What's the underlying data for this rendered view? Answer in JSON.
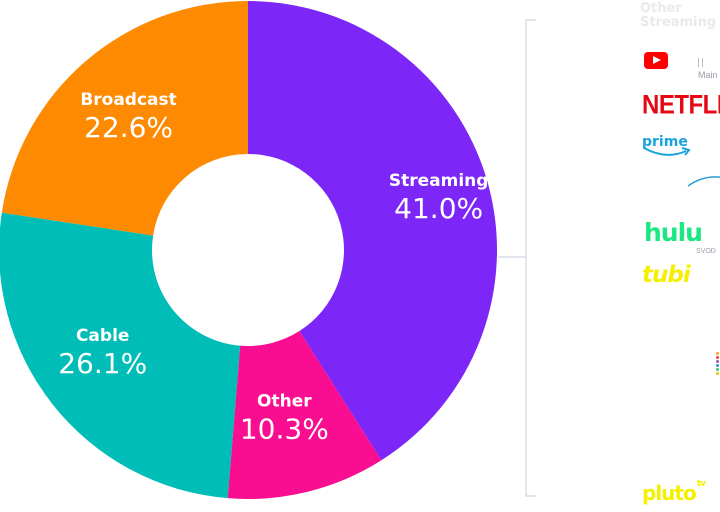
{
  "chart_data": {
    "type": "pie",
    "donut": true,
    "categories": [
      "Streaming",
      "Other",
      "Cable",
      "Broadcast"
    ],
    "values": [
      41.0,
      10.3,
      26.1,
      22.6
    ],
    "value_labels": [
      "41.0%",
      "10.3%",
      "26.1%",
      "22.6%"
    ],
    "colors": [
      "#7c26f8",
      "#f90d91",
      "#00bdb7",
      "#fe8a01"
    ],
    "title": ""
  },
  "other_streaming": {
    "heading": "Other Streaming",
    "logos": [
      {
        "icon": "youtube-icon",
        "sublabel": "Main"
      },
      {
        "icon": "netflix-logo",
        "text": "NETFLIX",
        "color": "#e50914"
      },
      {
        "icon": "prime-video-logo",
        "text": "prime",
        "color": "#1aa3dd"
      },
      {
        "icon": "arc-logo"
      },
      {
        "icon": "hulu-logo",
        "text": "hulu",
        "sublabel": "SVOD",
        "color": "#1ce783"
      },
      {
        "icon": "tubi-logo",
        "text": "tubi",
        "color": "#f5f000"
      },
      {
        "icon": "dots-logo"
      },
      {
        "icon": "pluto-tv-logo",
        "text": "pluto",
        "superscript": "tv",
        "color": "#f5f000"
      }
    ]
  }
}
